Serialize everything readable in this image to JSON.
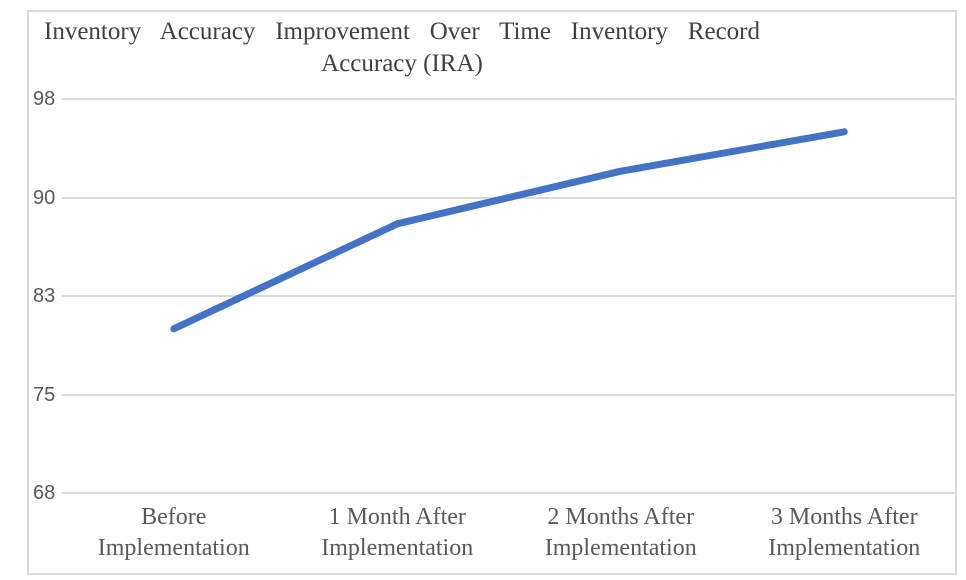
{
  "chart_data": {
    "type": "line",
    "title": "Inventory Accuracy Improvement Over Time Inventory Record Accuracy (IRA)",
    "title_line1": "Inventory Accuracy Improvement Over Time Inventory Record",
    "title_line2": "Accuracy (IRA)",
    "categories": [
      [
        "Before",
        "Implementation"
      ],
      [
        "1 Month After",
        "Implementation"
      ],
      [
        "2 Months After",
        "Implementation"
      ],
      [
        "3 Months After",
        "Implementation"
      ]
    ],
    "values": [
      80,
      88,
      92,
      95
    ],
    "xlabel": "",
    "ylabel": "",
    "y_axis": {
      "tick_labels": [
        "98",
        "90",
        "83",
        "75",
        "68"
      ],
      "tick_values": [
        97.5,
        90,
        82.5,
        75,
        67.5
      ],
      "min": 67.5,
      "max": 97.5,
      "step": 7.5
    },
    "grid": "horizontal",
    "legend": "none",
    "colors": {
      "series_line": "#4472C4",
      "gridline": "#d9d9d9",
      "border": "#d9d9d9",
      "title_text": "#404040",
      "axis_text": "#595959",
      "background": "#ffffff"
    }
  }
}
